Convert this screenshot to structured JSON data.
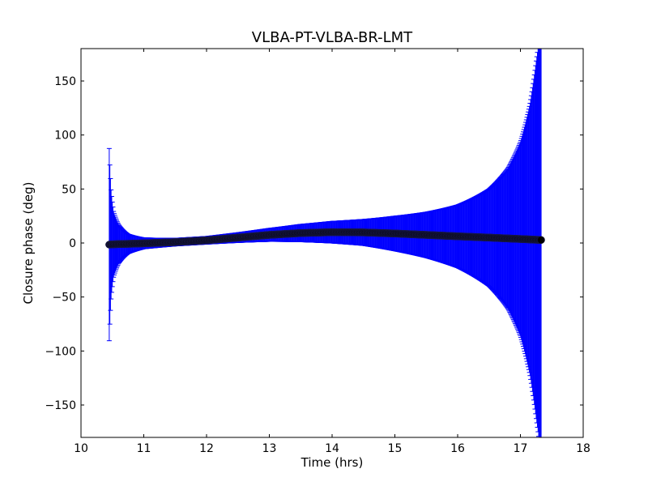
{
  "chart_data": {
    "type": "scatter",
    "title": "VLBA-PT-VLBA-BR-LMT",
    "xlabel": "Time (hrs)",
    "ylabel": "Closure phase (deg)",
    "xlim": [
      10,
      18
    ],
    "ylim": [
      -180,
      180
    ],
    "xticks": [
      10,
      11,
      12,
      13,
      14,
      15,
      16,
      17,
      18
    ],
    "yticks": [
      -150,
      -100,
      -50,
      0,
      50,
      100,
      150
    ],
    "grid": false,
    "legend": "none",
    "series": [
      {
        "marker_color": "#000000",
        "errorbar_color": "#0000ff",
        "x_start": 10.45,
        "x_end": 17.33,
        "points": [
          {
            "x": 10.45,
            "y": -1.5,
            "err": 89
          },
          {
            "x": 10.48,
            "y": -1.3,
            "err": 50
          },
          {
            "x": 10.52,
            "y": -1.2,
            "err": 30
          },
          {
            "x": 10.6,
            "y": -1.0,
            "err": 18
          },
          {
            "x": 10.75,
            "y": -0.8,
            "err": 9
          },
          {
            "x": 11.0,
            "y": -0.3,
            "err": 5
          },
          {
            "x": 11.5,
            "y": 0.8,
            "err": 3.5
          },
          {
            "x": 12.0,
            "y": 2.5,
            "err": 3.5
          },
          {
            "x": 12.5,
            "y": 5.0,
            "err": 4.5
          },
          {
            "x": 13.0,
            "y": 7.5,
            "err": 6
          },
          {
            "x": 13.5,
            "y": 9.2,
            "err": 8
          },
          {
            "x": 14.0,
            "y": 10.0,
            "err": 10
          },
          {
            "x": 14.5,
            "y": 9.8,
            "err": 12
          },
          {
            "x": 15.0,
            "y": 8.8,
            "err": 16
          },
          {
            "x": 15.5,
            "y": 7.5,
            "err": 21
          },
          {
            "x": 16.0,
            "y": 6.2,
            "err": 29
          },
          {
            "x": 16.5,
            "y": 5.0,
            "err": 45
          },
          {
            "x": 16.8,
            "y": 4.2,
            "err": 65
          },
          {
            "x": 17.0,
            "y": 3.7,
            "err": 90
          },
          {
            "x": 17.15,
            "y": 3.3,
            "err": 125
          },
          {
            "x": 17.25,
            "y": 3.0,
            "err": 165
          },
          {
            "x": 17.33,
            "y": 2.8,
            "err": 200
          }
        ]
      }
    ]
  }
}
